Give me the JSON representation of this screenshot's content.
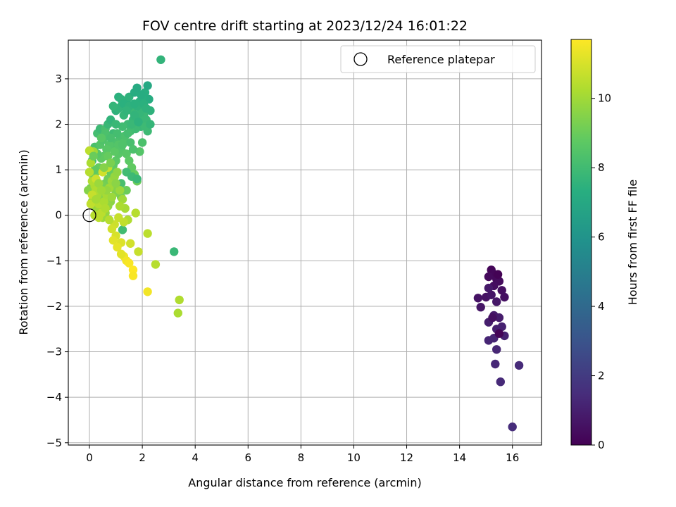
{
  "chart_data": {
    "type": "scatter",
    "title": "FOV centre drift starting at 2023/12/24 16:01:22",
    "xlabel": "Angular distance from reference (arcmin)",
    "ylabel": "Rotation from reference (arcmin)",
    "xlim": [
      -0.8,
      17.1
    ],
    "ylim": [
      -5.05,
      3.85
    ],
    "xticks": [
      0,
      2,
      4,
      6,
      8,
      10,
      12,
      14,
      16
    ],
    "yticks": [
      3,
      2,
      1,
      0,
      -1,
      -2,
      -3,
      -4,
      -5
    ],
    "xtick_labels": [
      "0",
      "2",
      "4",
      "6",
      "8",
      "10",
      "12",
      "14",
      "16"
    ],
    "ytick_labels": [
      "3",
      "2",
      "1",
      "0",
      "−1",
      "−2",
      "−3",
      "−4",
      "−5"
    ],
    "grid": true,
    "legend": {
      "position": "top-right",
      "entries": [
        {
          "label": "Reference platepar",
          "marker": "open-circle"
        }
      ]
    },
    "reference_point": {
      "x": 0,
      "y": 0
    },
    "colorbar": {
      "label": "Hours from first FF file",
      "range": [
        0,
        11.7
      ],
      "ticks": [
        0,
        2,
        4,
        6,
        8,
        10
      ],
      "tick_labels": [
        "0",
        "2",
        "4",
        "6",
        "8",
        "10"
      ],
      "colormap": "viridis"
    },
    "points": [
      [
        15.2,
        -1.2,
        0.15
      ],
      [
        15.3,
        -1.3,
        0.2
      ],
      [
        15.4,
        -1.4,
        0.25
      ],
      [
        15.1,
        -1.35,
        0.3
      ],
      [
        15.5,
        -1.45,
        0.35
      ],
      [
        15.3,
        -1.55,
        0.4
      ],
      [
        15.6,
        -1.65,
        0.45
      ],
      [
        15.7,
        -1.8,
        0.5
      ],
      [
        15.0,
        -1.8,
        0.55
      ],
      [
        14.7,
        -1.82,
        0.6
      ],
      [
        14.8,
        -2.02,
        0.65
      ],
      [
        15.2,
        -1.75,
        0.7
      ],
      [
        15.4,
        -1.9,
        0.75
      ],
      [
        15.1,
        -1.6,
        0.8
      ],
      [
        15.3,
        -2.2,
        0.85
      ],
      [
        15.5,
        -2.25,
        0.9
      ],
      [
        15.1,
        -2.35,
        0.95
      ],
      [
        15.4,
        -2.5,
        1.0
      ],
      [
        15.6,
        -2.45,
        1.05
      ],
      [
        15.7,
        -2.65,
        1.1
      ],
      [
        15.3,
        -2.7,
        1.15
      ],
      [
        15.1,
        -2.75,
        1.2
      ],
      [
        15.4,
        -2.95,
        1.25
      ],
      [
        15.35,
        -3.27,
        1.3
      ],
      [
        15.55,
        -3.66,
        1.35
      ],
      [
        16.25,
        -3.3,
        1.4
      ],
      [
        16.0,
        -4.65,
        1.45
      ],
      [
        15.5,
        -2.6,
        0.1
      ],
      [
        15.25,
        -2.25,
        0.5
      ],
      [
        15.45,
        -1.3,
        0.05
      ],
      [
        0.1,
        1.2,
        8.0
      ],
      [
        0.2,
        1.5,
        8.3
      ],
      [
        0.3,
        1.8,
        8.1
      ],
      [
        0.4,
        1.9,
        7.9
      ],
      [
        0.5,
        1.7,
        8.4
      ],
      [
        0.6,
        1.9,
        8.2
      ],
      [
        0.7,
        2.0,
        7.8
      ],
      [
        0.8,
        2.1,
        7.6
      ],
      [
        0.9,
        1.8,
        7.9
      ],
      [
        1.0,
        2.3,
        7.5
      ],
      [
        1.1,
        2.6,
        7.4
      ],
      [
        1.2,
        2.4,
        7.6
      ],
      [
        1.3,
        2.2,
        7.7
      ],
      [
        1.4,
        2.5,
        7.3
      ],
      [
        1.5,
        2.6,
        7.5
      ],
      [
        1.6,
        2.3,
        7.8
      ],
      [
        1.7,
        2.7,
        7.2
      ],
      [
        1.8,
        2.8,
        7.1
      ],
      [
        1.9,
        2.5,
        7.4
      ],
      [
        2.0,
        2.4,
        7.6
      ],
      [
        2.1,
        2.7,
        7.3
      ],
      [
        2.2,
        2.85,
        7.0
      ],
      [
        2.25,
        2.55,
        7.2
      ],
      [
        2.3,
        2.3,
        7.5
      ],
      [
        2.2,
        1.85,
        7.9
      ],
      [
        2.1,
        2.05,
        7.7
      ],
      [
        1.95,
        1.95,
        7.8
      ],
      [
        1.85,
        2.15,
        7.6
      ],
      [
        1.75,
        1.9,
        7.9
      ],
      [
        1.65,
        2.1,
        7.7
      ],
      [
        1.55,
        1.85,
        8.0
      ],
      [
        1.45,
        2.0,
        7.9
      ],
      [
        1.35,
        1.75,
        8.1
      ],
      [
        1.25,
        1.95,
        8.0
      ],
      [
        1.15,
        1.7,
        8.2
      ],
      [
        1.05,
        1.8,
        8.1
      ],
      [
        0.95,
        1.6,
        8.3
      ],
      [
        0.85,
        1.5,
        8.4
      ],
      [
        0.75,
        1.55,
        8.5
      ],
      [
        0.65,
        1.45,
        8.6
      ],
      [
        0.55,
        1.3,
        8.7
      ],
      [
        0.45,
        1.25,
        8.8
      ],
      [
        0.35,
        1.05,
        8.9
      ],
      [
        0.25,
        0.95,
        9.0
      ],
      [
        0.15,
        0.85,
        9.1
      ],
      [
        0.05,
        0.6,
        9.3
      ],
      [
        -0.05,
        0.55,
        9.5
      ],
      [
        0.1,
        0.3,
        9.7
      ],
      [
        0.2,
        0.2,
        9.8
      ],
      [
        0.3,
        0.1,
        9.9
      ],
      [
        0.4,
        0.35,
        9.6
      ],
      [
        0.5,
        0.5,
        9.4
      ],
      [
        0.6,
        0.7,
        9.2
      ],
      [
        0.7,
        0.8,
        9.1
      ],
      [
        0.8,
        0.95,
        8.9
      ],
      [
        0.9,
        1.1,
        8.8
      ],
      [
        1.0,
        1.2,
        8.7
      ],
      [
        1.1,
        1.35,
        8.6
      ],
      [
        1.2,
        1.45,
        8.5
      ],
      [
        1.3,
        1.6,
        8.4
      ],
      [
        1.4,
        1.35,
        8.6
      ],
      [
        1.5,
        1.2,
        8.7
      ],
      [
        1.6,
        1.05,
        8.8
      ],
      [
        1.7,
        0.9,
        8.9
      ],
      [
        1.8,
        0.75,
        9.0
      ],
      [
        1.9,
        1.4,
        8.5
      ],
      [
        2.0,
        1.6,
        8.3
      ],
      [
        2.05,
        2.2,
        7.8
      ],
      [
        1.9,
        2.25,
        7.7
      ],
      [
        2.15,
        2.1,
        7.8
      ],
      [
        2.7,
        3.42,
        7.6
      ],
      [
        1.2,
        2.55,
        7.5
      ],
      [
        1.1,
        2.35,
        7.6
      ],
      [
        0.9,
        2.4,
        7.7
      ],
      [
        1.3,
        2.45,
        7.4
      ],
      [
        1.6,
        2.0,
        7.8
      ],
      [
        1.7,
        2.2,
        7.6
      ],
      [
        1.8,
        2.4,
        7.5
      ],
      [
        2.0,
        2.6,
        7.3
      ],
      [
        2.1,
        1.95,
        7.9
      ],
      [
        0.4,
        1.55,
        8.5
      ],
      [
        0.5,
        1.65,
        8.4
      ],
      [
        0.6,
        1.8,
        8.3
      ],
      [
        0.3,
        1.35,
        8.6
      ],
      [
        0.2,
        1.0,
        8.8
      ],
      [
        1.2,
        0.7,
        8.2
      ],
      [
        1.4,
        0.95,
        8.0
      ],
      [
        1.6,
        0.85,
        7.9
      ],
      [
        1.8,
        0.8,
        7.8
      ],
      [
        1.25,
        -0.32,
        8.0
      ],
      [
        3.2,
        -0.8,
        7.8
      ],
      [
        1.4,
        0.55,
        9.0
      ],
      [
        1.2,
        0.4,
        9.2
      ],
      [
        1.0,
        0.5,
        9.4
      ],
      [
        0.9,
        0.6,
        9.5
      ],
      [
        0.8,
        0.3,
        9.6
      ],
      [
        0.7,
        0.2,
        9.7
      ],
      [
        0.6,
        0.05,
        9.8
      ],
      [
        0.5,
        -0.05,
        9.9
      ],
      [
        0.4,
        0.15,
        10.0
      ],
      [
        0.3,
        0.45,
        10.1
      ],
      [
        0.2,
        0.65,
        10.2
      ],
      [
        0.1,
        0.75,
        10.3
      ],
      [
        0.0,
        0.95,
        10.4
      ],
      [
        0.05,
        1.15,
        10.2
      ],
      [
        0.15,
        1.4,
        10.0
      ],
      [
        0.0,
        1.42,
        10.5
      ],
      [
        0.25,
        0.55,
        10.3
      ],
      [
        0.35,
        0.25,
        10.4
      ],
      [
        0.45,
        0.05,
        10.5
      ],
      [
        0.55,
        0.3,
        10.2
      ],
      [
        0.65,
        0.45,
        10.1
      ],
      [
        0.75,
        0.6,
        10.0
      ],
      [
        0.85,
        0.75,
        9.9
      ],
      [
        0.95,
        0.85,
        9.8
      ],
      [
        1.05,
        0.95,
        9.7
      ],
      [
        1.15,
        0.55,
        9.9
      ],
      [
        1.25,
        0.35,
        10.0
      ],
      [
        1.35,
        0.15,
        10.1
      ],
      [
        1.45,
        -0.1,
        10.3
      ],
      [
        1.75,
        0.05,
        10.4
      ],
      [
        1.3,
        -0.15,
        10.6
      ],
      [
        1.1,
        -0.05,
        10.7
      ],
      [
        0.95,
        -0.2,
        10.8
      ],
      [
        0.85,
        -0.3,
        10.9
      ],
      [
        1.0,
        -0.45,
        11.0
      ],
      [
        1.2,
        -0.6,
        11.1
      ],
      [
        0.9,
        -0.55,
        11.2
      ],
      [
        1.05,
        -0.7,
        11.3
      ],
      [
        1.3,
        -0.9,
        11.4
      ],
      [
        1.4,
        -1.0,
        11.5
      ],
      [
        1.5,
        -1.05,
        11.6
      ],
      [
        1.65,
        -1.2,
        11.7
      ],
      [
        1.65,
        -1.33,
        11.6
      ],
      [
        1.2,
        -0.85,
        11.2
      ],
      [
        1.55,
        -0.62,
        10.9
      ],
      [
        1.85,
        -0.8,
        10.7
      ],
      [
        2.2,
        -0.4,
        10.5
      ],
      [
        2.5,
        -1.08,
        10.4
      ],
      [
        2.2,
        -1.68,
        11.5
      ],
      [
        3.4,
        -1.86,
        10.3
      ],
      [
        3.35,
        -2.15,
        10.2
      ],
      [
        0.05,
        0.25,
        10.6
      ],
      [
        0.1,
        0.45,
        10.7
      ],
      [
        0.25,
        0.8,
        10.8
      ],
      [
        0.5,
        0.95,
        10.9
      ],
      [
        0.7,
        1.05,
        10.6
      ],
      [
        0.2,
        0.0,
        10.4
      ],
      [
        0.35,
        -0.05,
        10.5
      ],
      [
        0.6,
        0.15,
        10.3
      ],
      [
        0.15,
        1.3,
        9.0
      ],
      [
        0.45,
        1.7,
        8.6
      ],
      [
        0.7,
        1.3,
        8.9
      ],
      [
        0.95,
        1.4,
        8.7
      ],
      [
        1.1,
        1.55,
        8.5
      ],
      [
        1.35,
        1.75,
        8.3
      ],
      [
        1.55,
        1.6,
        8.2
      ],
      [
        1.65,
        1.45,
        8.3
      ],
      [
        1.45,
        1.8,
        8.1
      ],
      [
        1.25,
        1.55,
        8.4
      ],
      [
        0.55,
        1.05,
        9.5
      ],
      [
        0.8,
        1.15,
        9.3
      ],
      [
        1.0,
        0.7,
        9.6
      ],
      [
        0.65,
        0.55,
        9.8
      ],
      [
        0.35,
        0.7,
        9.9
      ],
      [
        0.25,
        0.35,
        10.1
      ],
      [
        0.45,
        0.55,
        10.0
      ],
      [
        0.85,
        0.4,
        9.9
      ],
      [
        1.15,
        0.2,
        10.2
      ],
      [
        0.75,
        -0.1,
        10.4
      ],
      [
        1.85,
        2.05,
        7.5
      ],
      [
        2.05,
        2.45,
        7.4
      ],
      [
        1.95,
        2.65,
        7.2
      ],
      [
        1.5,
        2.4,
        7.5
      ],
      [
        1.0,
        2.0,
        7.8
      ],
      [
        0.8,
        1.7,
        8.2
      ],
      [
        1.4,
        2.3,
        7.6
      ],
      [
        1.7,
        2.45,
        7.4
      ],
      [
        2.15,
        2.35,
        7.5
      ],
      [
        2.3,
        2.0,
        7.7
      ]
    ]
  }
}
